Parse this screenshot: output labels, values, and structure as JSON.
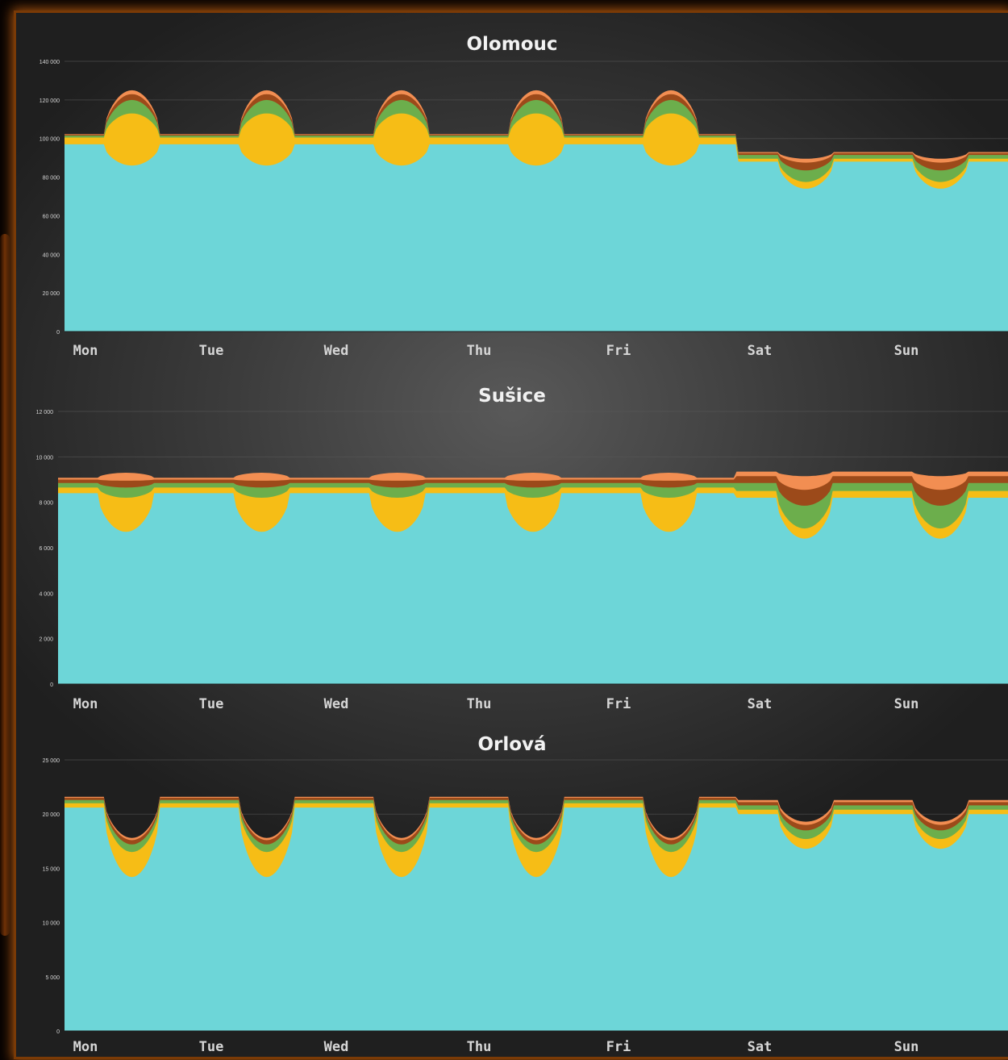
{
  "chart_data": [
    {
      "type": "area",
      "stacked": true,
      "title": "Olomouc",
      "xlabel": "",
      "ylabel": "",
      "x_tick_labels": [
        "Mon",
        "Tue",
        "Wed",
        "Thu",
        "Fri",
        "Sat",
        "Sun"
      ],
      "ylim": [
        0,
        140000
      ],
      "y_ticks": [
        0,
        20000,
        40000,
        60000,
        80000,
        100000,
        120000,
        140000
      ],
      "y_tick_labels": [
        "0",
        "20 000",
        "40 000",
        "60 000",
        "80 000",
        "100 000",
        "120 000",
        "140 000"
      ],
      "grid": true,
      "legend": "none",
      "weekday_profile": {
        "base_night": 97000,
        "base_noon": 86000,
        "yellow_night": 3500,
        "yellow_noon": 27000,
        "green_night": 1000,
        "green_noon": 7000,
        "brown_night": 500,
        "brown_noon": 3000,
        "orange_night": 300,
        "orange_noon": 2000
      },
      "weekend_profile": {
        "base_night": 88000,
        "base_noon": 74000,
        "yellow_night": 1500,
        "yellow_noon": 3500,
        "green_night": 2000,
        "green_noon": 6000,
        "brown_night": 1000,
        "brown_noon": 4000,
        "orange_night": 500,
        "orange_noon": 2000
      }
    },
    {
      "type": "area",
      "stacked": true,
      "title": "Sušice",
      "xlabel": "",
      "ylabel": "",
      "x_tick_labels": [
        "Mon",
        "Tue",
        "Wed",
        "Thu",
        "Fri",
        "Sat",
        "Sun"
      ],
      "ylim": [
        0,
        12000
      ],
      "y_ticks": [
        0,
        2000,
        4000,
        6000,
        8000,
        10000,
        12000
      ],
      "y_tick_labels": [
        "0",
        "2 000",
        "4 000",
        "6 000",
        "8 000",
        "10 000",
        "12 000"
      ],
      "grid": true,
      "legend": "none",
      "weekday_profile": {
        "base_night": 8400,
        "base_noon": 6700,
        "yellow_night": 250,
        "yellow_noon": 1500,
        "green_night": 200,
        "green_noon": 450,
        "brown_night": 150,
        "brown_noon": 300,
        "orange_night": 80,
        "orange_noon": 350
      },
      "weekend_profile": {
        "base_night": 8200,
        "base_noon": 6400,
        "yellow_night": 300,
        "yellow_noon": 450,
        "green_night": 350,
        "green_noon": 1000,
        "brown_night": 300,
        "brown_noon": 700,
        "orange_night": 200,
        "orange_noon": 600
      }
    },
    {
      "type": "area",
      "stacked": true,
      "title": "Orlová",
      "xlabel": "",
      "ylabel": "",
      "x_tick_labels": [
        "Mon",
        "Tue",
        "Wed",
        "Thu",
        "Fri",
        "Sat",
        "Sun"
      ],
      "ylim": [
        0,
        25000
      ],
      "y_ticks": [
        0,
        5000,
        10000,
        15000,
        20000,
        25000
      ],
      "y_tick_labels": [
        "0",
        "5 000",
        "10 000",
        "15 000",
        "20 000",
        "25 000"
      ],
      "grid": true,
      "legend": "none",
      "weekday_profile": {
        "base_night": 20600,
        "base_noon": 14200,
        "yellow_night": 400,
        "yellow_noon": 2300,
        "green_night": 300,
        "green_noon": 700,
        "brown_night": 200,
        "brown_noon": 400,
        "orange_night": 100,
        "orange_noon": 200
      },
      "weekend_profile": {
        "base_night": 20000,
        "base_noon": 16800,
        "yellow_night": 400,
        "yellow_noon": 900,
        "green_night": 400,
        "green_noon": 800,
        "brown_night": 300,
        "brown_noon": 500,
        "orange_night": 200,
        "orange_noon": 300
      }
    }
  ],
  "colors": {
    "base": "#6dd6d8",
    "yellow": "#f6bd16",
    "green": "#6cae4c",
    "brown": "#9c4a1a",
    "orange": "#f28e52",
    "axis_text": "#d6d6d6",
    "title_text": "#f2f2f2",
    "grid": "#5a5a5a"
  }
}
